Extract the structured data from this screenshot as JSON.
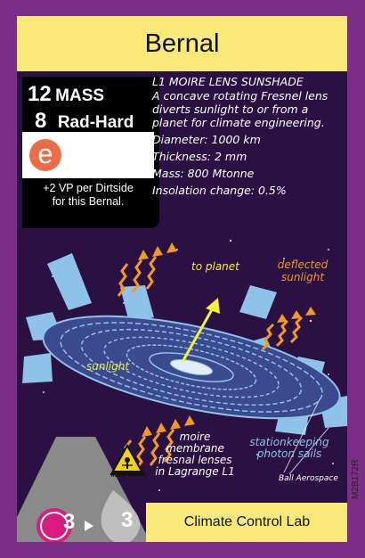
{
  "card": {
    "title": "Bernal",
    "stats": {
      "mass_value": "12",
      "mass_label": "MASS",
      "radhard_value": "8",
      "radhard_label": "Rad-Hard"
    },
    "type_badge": "e",
    "vp_text_line1": "+2 VP per Dirtside",
    "vp_text_line2": "for this Bernal.",
    "description": {
      "header": "L1 MOIRE LENS SUNSHADE",
      "body_line1": "A concave rotating Fresnel lens",
      "body_line2": "diverts sunlight to or from a",
      "body_line3": "planet for climate engineering.",
      "diameter": "Diameter: 1000 km",
      "thickness": "Thickness: 2 mm",
      "mass": "Mass: 800 Mtonne",
      "insolation": "Insolation change: 0.5%"
    },
    "art_labels": {
      "to_planet": "to planet",
      "deflected_line1": "deflected",
      "deflected_line2": "sunlight",
      "sunlight": "sunlight",
      "moire_line1": "moire membrane",
      "moire_line2": "fresnal lenses",
      "moire_line3": "in Lagrange L1",
      "station_line1": "stationkeeping",
      "station_line2": "photon sails",
      "credit": "Ball Aerospace"
    },
    "hazard_text": "HUMAN TENDERS",
    "upgrade": {
      "from": "3",
      "to": "3"
    },
    "faction": "Climate Control Lab",
    "code": "M2B172R",
    "colors": {
      "border": "#7b2d87",
      "background": "#2a1043",
      "banner": "#f8e97a",
      "badge": "#ef6a46",
      "arrow": "#f29a1f",
      "lens": "#8fc2e8",
      "magenta": "#d81c7d"
    }
  }
}
